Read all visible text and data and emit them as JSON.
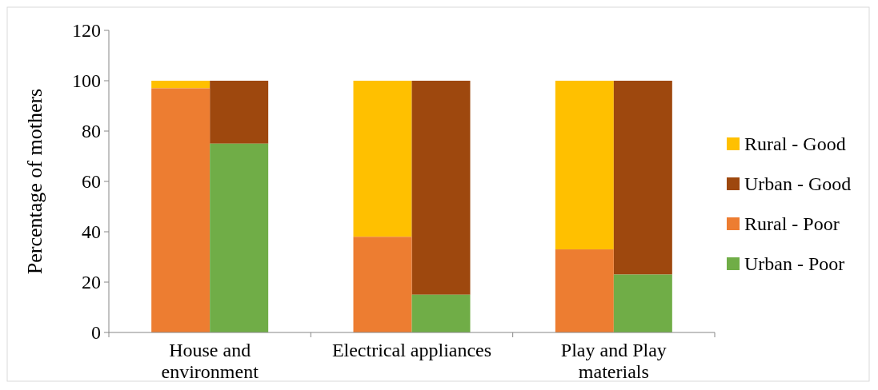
{
  "chart_data": {
    "type": "bar",
    "ylabel": "Percentage of mothers",
    "categories": [
      "House and environment",
      "Electrical appliances",
      "Play and Play materials"
    ],
    "legend": "right",
    "grid": false,
    "ylim": [
      0,
      120
    ],
    "yticks": [
      0,
      20,
      40,
      60,
      80,
      100,
      120
    ],
    "series": [
      {
        "name": "Rural - Good",
        "color": "#ffc000",
        "base": [
          97,
          38,
          33
        ],
        "values": [
          3,
          62,
          67
        ]
      },
      {
        "name": "Urban - Good",
        "color": "#9e480e",
        "base": [
          75,
          15,
          23
        ],
        "values": [
          25,
          85,
          77
        ]
      },
      {
        "name": "Rural - Poor",
        "color": "#ed7d31",
        "values": [
          97,
          38,
          33
        ]
      },
      {
        "name": "Urban - Poor",
        "color": "#70ad47",
        "values": [
          75,
          15,
          23
        ]
      }
    ]
  }
}
